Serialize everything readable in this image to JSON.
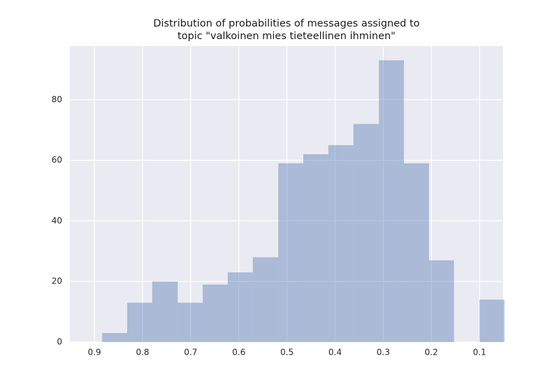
{
  "chart_data": {
    "type": "histogram",
    "title": [
      "Distribution of probabilities of messages assigned to",
      "topic \"valkoinen mies tieteellinen ihminen\""
    ],
    "bins": [
      0.048,
      0.1,
      0.153,
      0.205,
      0.257,
      0.309,
      0.362,
      0.414,
      0.466,
      0.518,
      0.571,
      0.623,
      0.675,
      0.727,
      0.78,
      0.832,
      0.884
    ],
    "values": [
      14,
      0,
      27,
      59,
      93,
      72,
      65,
      62,
      59,
      28,
      23,
      19,
      13,
      20,
      13,
      3
    ],
    "color": "#4c72b0",
    "opacity": 0.4,
    "background": "#eaeaf2",
    "xlim": [
      0.951,
      0.051
    ],
    "xticks": [
      0.9,
      0.8,
      0.7,
      0.6,
      0.5,
      0.4,
      0.3,
      0.2,
      0.1
    ],
    "ylim": [
      0,
      97.7
    ],
    "yticks": [
      0,
      20,
      40,
      60,
      80
    ],
    "grid": true
  }
}
